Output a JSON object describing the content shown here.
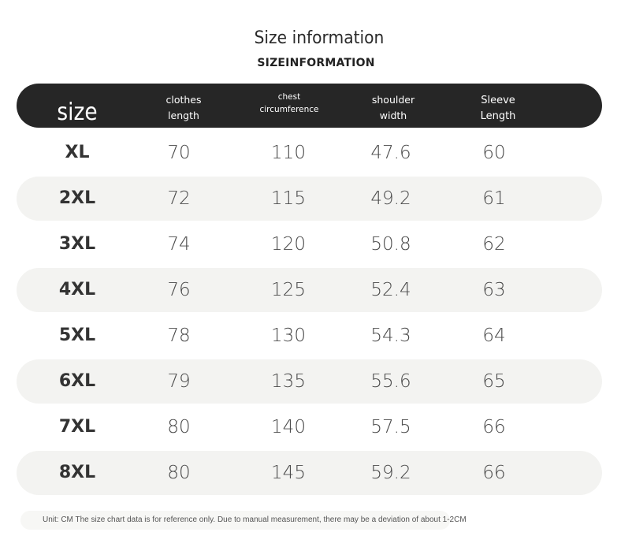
{
  "title": "Size information",
  "subtitle": "SIZEINFORMATION",
  "columns": {
    "size": "size",
    "clothes_length": "clothes\nlength",
    "chest": "chest\ncircumference",
    "shoulder": "shoulder\nwidth",
    "sleeve": "Sleeve\nLength"
  },
  "rows": [
    {
      "size": "XL",
      "length": "70",
      "chest": "110",
      "shoulder": "47.6",
      "sleeve": "60"
    },
    {
      "size": "2XL",
      "length": "72",
      "chest": "115",
      "shoulder": "49.2",
      "sleeve": "61"
    },
    {
      "size": "3XL",
      "length": "74",
      "chest": "120",
      "shoulder": "50.8",
      "sleeve": "62"
    },
    {
      "size": "4XL",
      "length": "76",
      "chest": "125",
      "shoulder": "52.4",
      "sleeve": "63"
    },
    {
      "size": "5XL",
      "length": "78",
      "chest": "130",
      "shoulder": "54.3",
      "sleeve": "64"
    },
    {
      "size": "6XL",
      "length": "79",
      "chest": "135",
      "shoulder": "55.6",
      "sleeve": "65"
    },
    {
      "size": "7XL",
      "length": "80",
      "chest": "140",
      "shoulder": "57.5",
      "sleeve": "66"
    },
    {
      "size": "8XL",
      "length": "80",
      "chest": "145",
      "shoulder": "59.2",
      "sleeve": "66"
    }
  ],
  "footnote": "Unit: CM The size chart data is for reference only. Due to manual measurement, there may be a deviation of about 1-2CM",
  "colors": {
    "header_bg": "#262626",
    "row_shade": "#f3f3f1",
    "text": "#4a4a4a"
  }
}
